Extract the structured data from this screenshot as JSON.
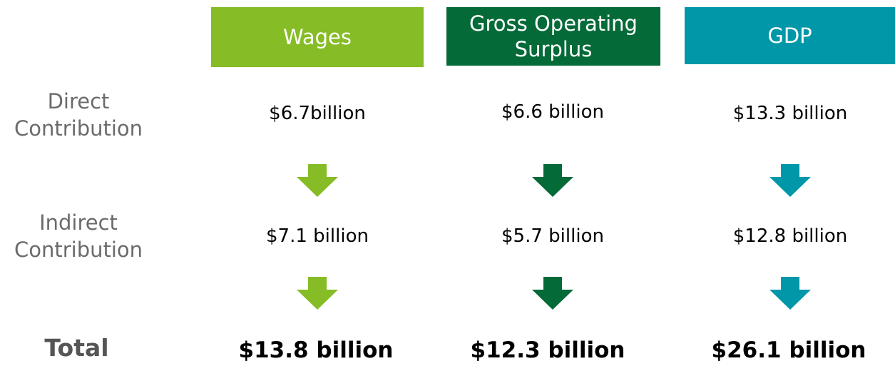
{
  "row_labels": {
    "direct": "Direct Contribution",
    "indirect": "Indirect Contribution",
    "total": "Total"
  },
  "columns": [
    {
      "header": "Wages",
      "direct": "$6.7billion",
      "indirect": "$7.1 billion",
      "total": "$13.8 billion"
    },
    {
      "header": "Gross Operating Surplus",
      "direct": "$6.6 billion",
      "indirect": "$5.7 billion",
      "total": "$12.3 billion"
    },
    {
      "header": "GDP",
      "direct": "$13.3 billion",
      "indirect": "$12.8 billion",
      "total": "$26.1 billion"
    }
  ]
}
